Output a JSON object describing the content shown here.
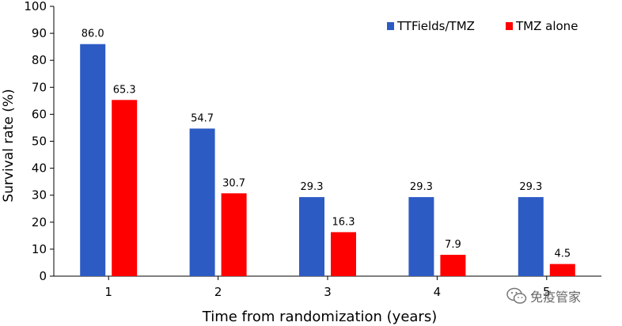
{
  "chart_data": {
    "type": "bar",
    "categories": [
      "1",
      "2",
      "3",
      "4",
      "5"
    ],
    "series": [
      {
        "name": "TTFields/TMZ",
        "color": "#2d5bc4",
        "values": [
          86.0,
          54.7,
          29.3,
          29.3,
          29.3
        ]
      },
      {
        "name": "TMZ alone",
        "color": "#ff0000",
        "values": [
          65.3,
          30.7,
          16.3,
          7.9,
          4.5
        ]
      }
    ],
    "data_labels": [
      [
        "86.0",
        "54.7",
        "29.3",
        "29.3",
        "29.3"
      ],
      [
        "65.3",
        "30.7",
        "16.3",
        "7.9",
        "4.5"
      ]
    ],
    "title": "",
    "xlabel": "Time from randomization (years)",
    "ylabel": "Survival rate (%)",
    "ylim": [
      0,
      100
    ],
    "yticks": [
      0,
      10,
      20,
      30,
      40,
      50,
      60,
      70,
      80,
      90,
      100
    ],
    "grid": false,
    "legend_position": "top-right"
  },
  "watermark": {
    "text": "免疫管家",
    "icon": "wechat-icon"
  }
}
